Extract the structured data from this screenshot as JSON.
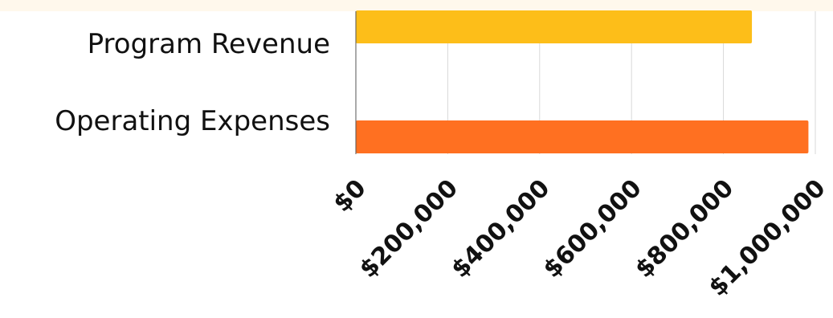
{
  "chart_data": {
    "type": "bar",
    "orientation": "horizontal",
    "categories": [
      "Program Revenue",
      "Operating Expenses"
    ],
    "values": [
      862000,
      985000
    ],
    "colors": [
      "#FDBE19",
      "#FF7021"
    ],
    "xlim": [
      0,
      1000000
    ],
    "x_ticks": [
      "$0",
      "$200,000",
      "$400,000",
      "$600,000",
      "$800,000",
      "$1,000,000"
    ],
    "x_tick_values": [
      0,
      200000,
      400000,
      600000,
      800000,
      1000000
    ],
    "grid": true,
    "background_band_color": "#FFF8EC",
    "title": "",
    "xlabel": "",
    "ylabel": ""
  }
}
